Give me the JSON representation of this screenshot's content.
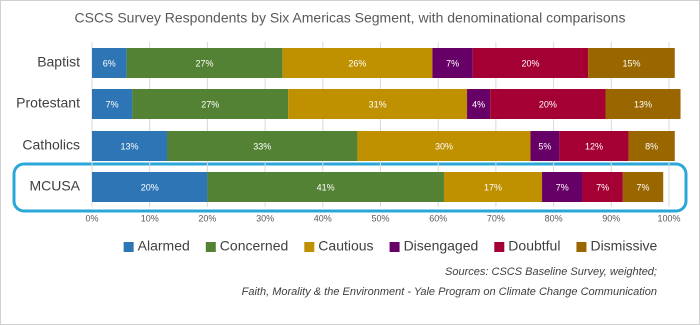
{
  "chart_data": {
    "type": "stacked-bar-horizontal",
    "title": "CSCS Survey Respondents by Six Americas Segment, with denominational comparisons",
    "categories": [
      "Baptist",
      "Protestant",
      "Catholics",
      "MCUSA"
    ],
    "series": [
      {
        "name": "Alarmed",
        "color": "#2e75b6",
        "values": [
          6,
          7,
          13,
          20
        ],
        "value_labels": [
          "6%",
          "7%",
          "13%",
          "20%"
        ]
      },
      {
        "name": "Concerned",
        "color": "#548235",
        "values": [
          27,
          27,
          33,
          41
        ],
        "value_labels": [
          "27%",
          "27%",
          "33%",
          "41%"
        ]
      },
      {
        "name": "Cautious",
        "color": "#bf9000",
        "values": [
          26,
          31,
          30,
          17
        ],
        "value_labels": [
          "26%",
          "31%",
          "30%",
          "17%"
        ]
      },
      {
        "name": "Disengaged",
        "color": "#660066",
        "values": [
          7,
          4,
          5,
          7
        ],
        "value_labels": [
          "7%",
          "4%",
          "5%",
          "7%"
        ]
      },
      {
        "name": "Doubtful",
        "color": "#a50034",
        "values": [
          20,
          20,
          12,
          7
        ],
        "value_labels": [
          "20%",
          "20%",
          "12%",
          "7%"
        ]
      },
      {
        "name": "Dismissive",
        "color": "#996600",
        "values": [
          15,
          13,
          8,
          7
        ],
        "value_labels": [
          "15%",
          "13%",
          "8%",
          "7%"
        ]
      }
    ],
    "xlim": [
      0,
      100
    ],
    "xticks": [
      {
        "value": 0,
        "label": "0%"
      },
      {
        "value": 10,
        "label": "10%"
      },
      {
        "value": 20,
        "label": "20%"
      },
      {
        "value": 30,
        "label": "30%"
      },
      {
        "value": 40,
        "label": "40%"
      },
      {
        "value": 50,
        "label": "50%"
      },
      {
        "value": 60,
        "label": "60%"
      },
      {
        "value": 70,
        "label": "70%"
      },
      {
        "value": 80,
        "label": "80%"
      },
      {
        "value": 90,
        "label": "90%"
      },
      {
        "value": 100,
        "label": "100%"
      }
    ],
    "grid": true,
    "legend": "bottom",
    "source": [
      "Sources: CSCS Baseline Survey, weighted;",
      "Faith, Morality & the Environment - Yale Program on Climate Change Communication"
    ]
  }
}
